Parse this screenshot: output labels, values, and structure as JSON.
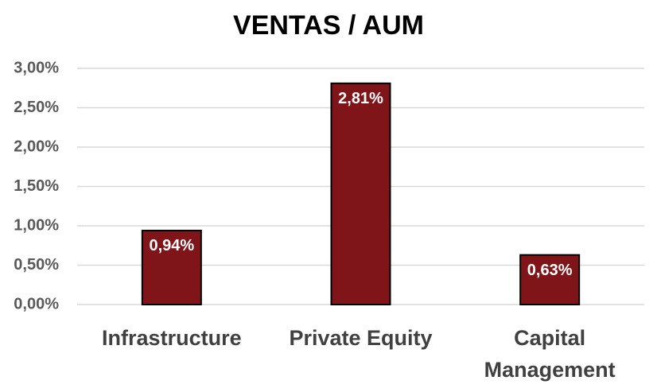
{
  "chart_data": {
    "type": "bar",
    "title": "VENTAS / AUM",
    "categories": [
      "Infrastructure",
      "Private Equity",
      "Capital Management"
    ],
    "values": [
      0.94,
      2.81,
      0.63
    ],
    "value_labels": [
      "0,94%",
      "2,81%",
      "0,63%"
    ],
    "color": "#7f1519",
    "ylim": [
      0,
      3
    ],
    "yticks": [
      {
        "value": 0,
        "label": "0,00%"
      },
      {
        "value": 0.5,
        "label": "0,50%"
      },
      {
        "value": 1,
        "label": "1,00%"
      },
      {
        "value": 1.5,
        "label": "1,50%"
      },
      {
        "value": 2,
        "label": "2,00%"
      },
      {
        "value": 2.5,
        "label": "2,50%"
      },
      {
        "value": 3,
        "label": "3,00%"
      }
    ],
    "grid": true
  }
}
